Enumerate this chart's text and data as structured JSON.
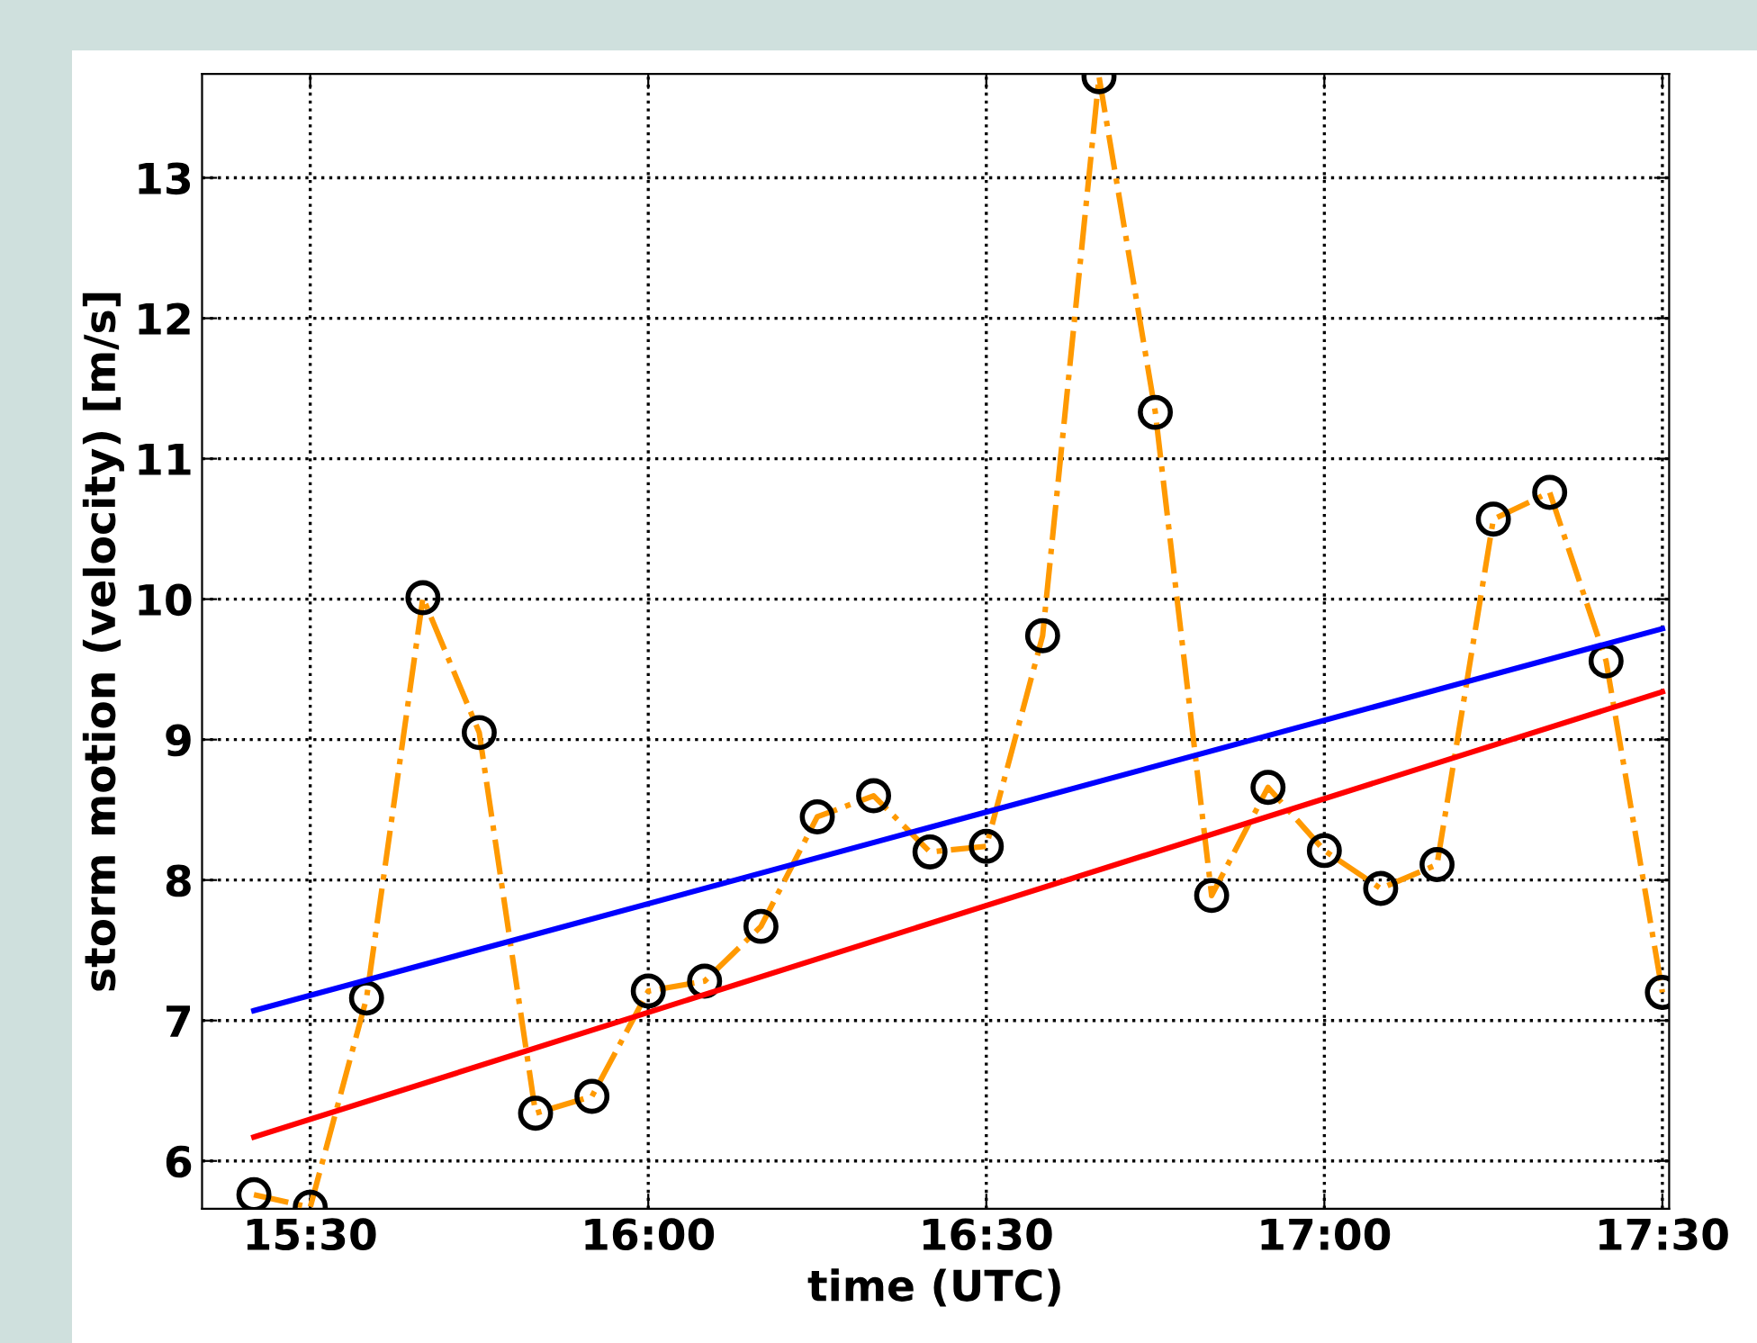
{
  "chart_data": {
    "type": "line",
    "xlabel": "time (UTC)",
    "ylabel": "storm motion (velocity) [m/s]",
    "xlim": [
      15.34,
      17.51
    ],
    "ylim": [
      5.66,
      13.74
    ],
    "xticks": [
      {
        "value": 15.5,
        "label": "15:30"
      },
      {
        "value": 16.0,
        "label": "16:00"
      },
      {
        "value": 16.5,
        "label": "16:30"
      },
      {
        "value": 17.0,
        "label": "17:00"
      },
      {
        "value": 17.5,
        "label": "17:30"
      }
    ],
    "yticks": [
      6,
      7,
      8,
      9,
      10,
      11,
      12,
      13
    ],
    "grid": true,
    "series": [
      {
        "color": "#ff9900",
        "marker": "circle",
        "line_style": "dashdot",
        "x": [
          15.4167,
          15.5,
          15.5833,
          15.6667,
          15.75,
          15.8333,
          15.9167,
          16.0,
          16.0833,
          16.1667,
          16.25,
          16.3333,
          16.4167,
          16.5,
          16.5833,
          16.6667,
          16.75,
          16.8333,
          16.9167,
          17.0,
          17.0833,
          17.1667,
          17.25,
          17.3333,
          17.4167,
          17.5
        ],
        "values": [
          5.76,
          5.67,
          7.16,
          10.01,
          9.05,
          6.34,
          6.46,
          7.21,
          7.28,
          7.67,
          8.45,
          8.6,
          8.2,
          8.24,
          9.74,
          13.72,
          11.33,
          7.89,
          8.66,
          8.21,
          7.94,
          8.11,
          10.57,
          10.76,
          9.56,
          7.2
        ]
      },
      {
        "color": "#0000ff",
        "marker": "none",
        "line_style": "solid",
        "x": [
          15.4167,
          17.5
        ],
        "values": [
          7.07,
          9.79
        ]
      },
      {
        "color": "#ff0000",
        "marker": "none",
        "line_style": "solid",
        "x": [
          15.4167,
          17.5
        ],
        "values": [
          6.17,
          9.34
        ]
      }
    ]
  }
}
